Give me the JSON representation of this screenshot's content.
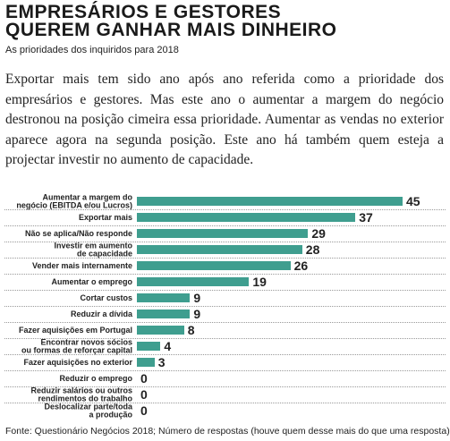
{
  "chart_data": {
    "type": "bar",
    "orientation": "horizontal",
    "title": "EMPRESÁRIOS E GESTORES\nQUEREM GANHAR MAIS DINHEIRO",
    "subtitle": "As prioridades dos inquiridos para 2018",
    "text": "Exportar mais tem sido ano após ano referida como a prioridade dos empresários e gestores. Mas este ano o aumentar a margem do negócio destronou na posição cimeira essa prioridade. Aumentar as vendas no exterior aparece agora na segunda posição. Este ano há também quem esteja a projectar investir no aumento de capacidade.",
    "categories": [
      "Aumentar a margem do\nnegócio (EBITDA e/ou Lucros)",
      "Exportar mais",
      "Não se aplica/Não responde",
      "Investir em aumento\nde capacidade",
      "Vender mais internamente",
      "Aumentar o emprego",
      "Cortar custos",
      "Reduzir a dívida",
      "Fazer aquisições em Portugal",
      "Encontrar novos sócios\nou formas de reforçar capital",
      "Fazer aquisições no exterior",
      "Reduzir o emprego",
      "Reduzir salários ou outros\nrendimentos do trabalho",
      "Deslocalizar parte/toda\na produção"
    ],
    "values": [
      45,
      37,
      29,
      28,
      26,
      19,
      9,
      9,
      8,
      4,
      3,
      0,
      0,
      0
    ],
    "color": "#3f9e8f",
    "source": "Fonte: Questionário Negócios 2018; Número de respostas (houve quem desse mais do  que uma resposta)"
  }
}
